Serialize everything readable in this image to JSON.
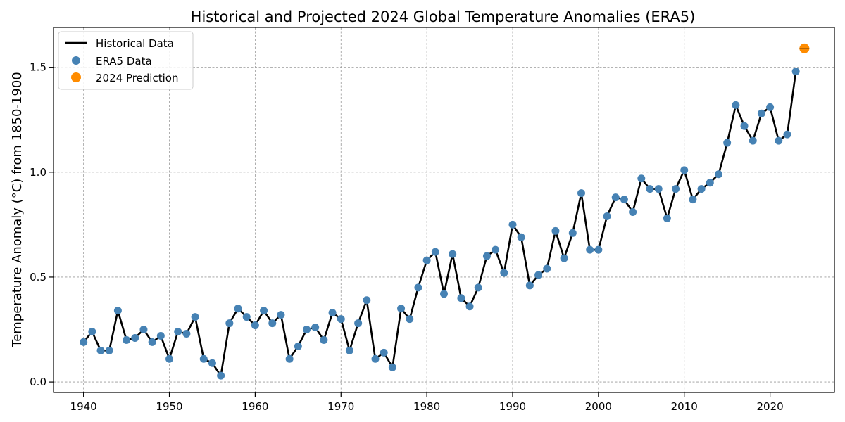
{
  "chart_data": {
    "type": "line",
    "title": "Historical and Projected 2024 Global Temperature Anomalies (ERA5)",
    "xlabel": "",
    "ylabel": "Temperature Anomaly (°C) from 1850-1900",
    "xlim": [
      1936.5,
      2027.5
    ],
    "ylim": [
      -0.05,
      1.69
    ],
    "x_ticks": [
      1940,
      1950,
      1960,
      1970,
      1980,
      1990,
      2000,
      2010,
      2020
    ],
    "x_tick_labels": [
      "1940",
      "1950",
      "1960",
      "1970",
      "1980",
      "1990",
      "2000",
      "2010",
      "2020"
    ],
    "y_ticks": [
      0.0,
      0.5,
      1.0,
      1.5
    ],
    "y_tick_labels": [
      "0.0",
      "0.5",
      "1.0",
      "1.5"
    ],
    "grid": true,
    "legend_position": "top-left",
    "series": [
      {
        "name": "Historical Data",
        "kind": "line",
        "color": "#000000",
        "x": [
          1940,
          1941,
          1942,
          1943,
          1944,
          1945,
          1946,
          1947,
          1948,
          1949,
          1950,
          1951,
          1952,
          1953,
          1954,
          1955,
          1956,
          1957,
          1958,
          1959,
          1960,
          1961,
          1962,
          1963,
          1964,
          1965,
          1966,
          1967,
          1968,
          1969,
          1970,
          1971,
          1972,
          1973,
          1974,
          1975,
          1976,
          1977,
          1978,
          1979,
          1980,
          1981,
          1982,
          1983,
          1984,
          1985,
          1986,
          1987,
          1988,
          1989,
          1990,
          1991,
          1992,
          1993,
          1994,
          1995,
          1996,
          1997,
          1998,
          1999,
          2000,
          2001,
          2002,
          2003,
          2004,
          2005,
          2006,
          2007,
          2008,
          2009,
          2010,
          2011,
          2012,
          2013,
          2014,
          2015,
          2016,
          2017,
          2018,
          2019,
          2020,
          2021,
          2022,
          2023
        ],
        "values": [
          0.19,
          0.24,
          0.15,
          0.15,
          0.34,
          0.2,
          0.21,
          0.25,
          0.19,
          0.22,
          0.11,
          0.24,
          0.23,
          0.31,
          0.11,
          0.09,
          0.03,
          0.28,
          0.35,
          0.31,
          0.27,
          0.34,
          0.28,
          0.32,
          0.11,
          0.17,
          0.25,
          0.26,
          0.2,
          0.33,
          0.3,
          0.15,
          0.28,
          0.39,
          0.11,
          0.14,
          0.07,
          0.35,
          0.3,
          0.45,
          0.58,
          0.62,
          0.42,
          0.61,
          0.4,
          0.36,
          0.45,
          0.6,
          0.63,
          0.52,
          0.75,
          0.69,
          0.46,
          0.51,
          0.54,
          0.72,
          0.59,
          0.71,
          0.9,
          0.63,
          0.63,
          0.79,
          0.88,
          0.87,
          0.81,
          0.97,
          0.92,
          0.92,
          0.78,
          0.92,
          1.01,
          0.87,
          0.92,
          0.95,
          0.99,
          1.14,
          1.32,
          1.22,
          1.15,
          1.28,
          1.31,
          1.15,
          1.18,
          1.48
        ]
      },
      {
        "name": "ERA5 Data",
        "kind": "scatter",
        "color": "#4682b4",
        "same_as": "Historical Data"
      },
      {
        "name": "2024 Prediction",
        "kind": "scatter",
        "color": "#ff8c00",
        "x": [
          2024
        ],
        "values": [
          1.59
        ]
      }
    ]
  }
}
